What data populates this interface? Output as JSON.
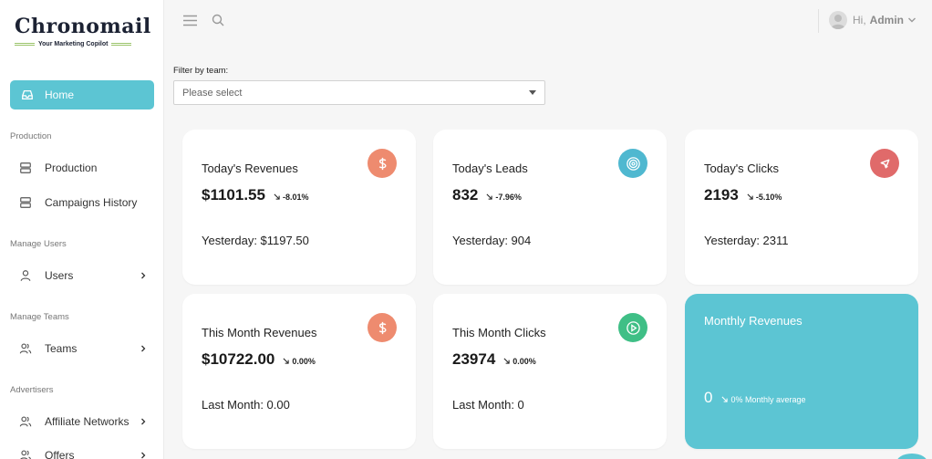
{
  "brand": {
    "name": "Chronomail",
    "tagline": "Your Marketing Copilot"
  },
  "sidebar": {
    "home": "Home",
    "sections": [
      {
        "title": "Production",
        "items": [
          {
            "label": "Production"
          },
          {
            "label": "Campaigns History"
          }
        ]
      },
      {
        "title": "Manage Users",
        "items": [
          {
            "label": "Users"
          }
        ]
      },
      {
        "title": "Manage Teams",
        "items": [
          {
            "label": "Teams"
          }
        ]
      },
      {
        "title": "Advertisers",
        "items": [
          {
            "label": "Affiliate Networks"
          },
          {
            "label": "Offers"
          }
        ]
      }
    ]
  },
  "topbar": {
    "greeting": "Hi,",
    "user": "Admin"
  },
  "filter": {
    "label": "Filter by team:",
    "placeholder": "Please select"
  },
  "cards": {
    "revenues": {
      "label": "Today's Revenues",
      "value": "$1101.55",
      "delta": "-8.01%",
      "footer": "Yesterday: $1197.50",
      "icon": "dollar-icon",
      "color": "#ee8b6f"
    },
    "leads": {
      "label": "Today's Leads",
      "value": "832",
      "delta": "-7.96%",
      "footer": "Yesterday: 904",
      "icon": "target-icon",
      "color": "#4fb8d0"
    },
    "clicks": {
      "label": "Today's Clicks",
      "value": "2193",
      "delta": "-5.10%",
      "footer": "Yesterday: 2311",
      "icon": "cursor-icon",
      "color": "#e06a6a"
    },
    "month_revenues": {
      "label": "This Month Revenues",
      "value": "$10722.00",
      "delta": "0.00%",
      "footer": "Last Month: 0.00",
      "icon": "dollar-icon",
      "color": "#ee8b6f"
    },
    "month_clicks": {
      "label": "This Month Clicks",
      "value": "23974",
      "delta": "0.00%",
      "footer": "Last Month: 0",
      "icon": "play-icon",
      "color": "#3fbf86"
    },
    "monthly_revenues": {
      "label": "Monthly Revenues",
      "value": "0",
      "sub": "0% Monthly average",
      "color": "#5cc5d3"
    }
  }
}
